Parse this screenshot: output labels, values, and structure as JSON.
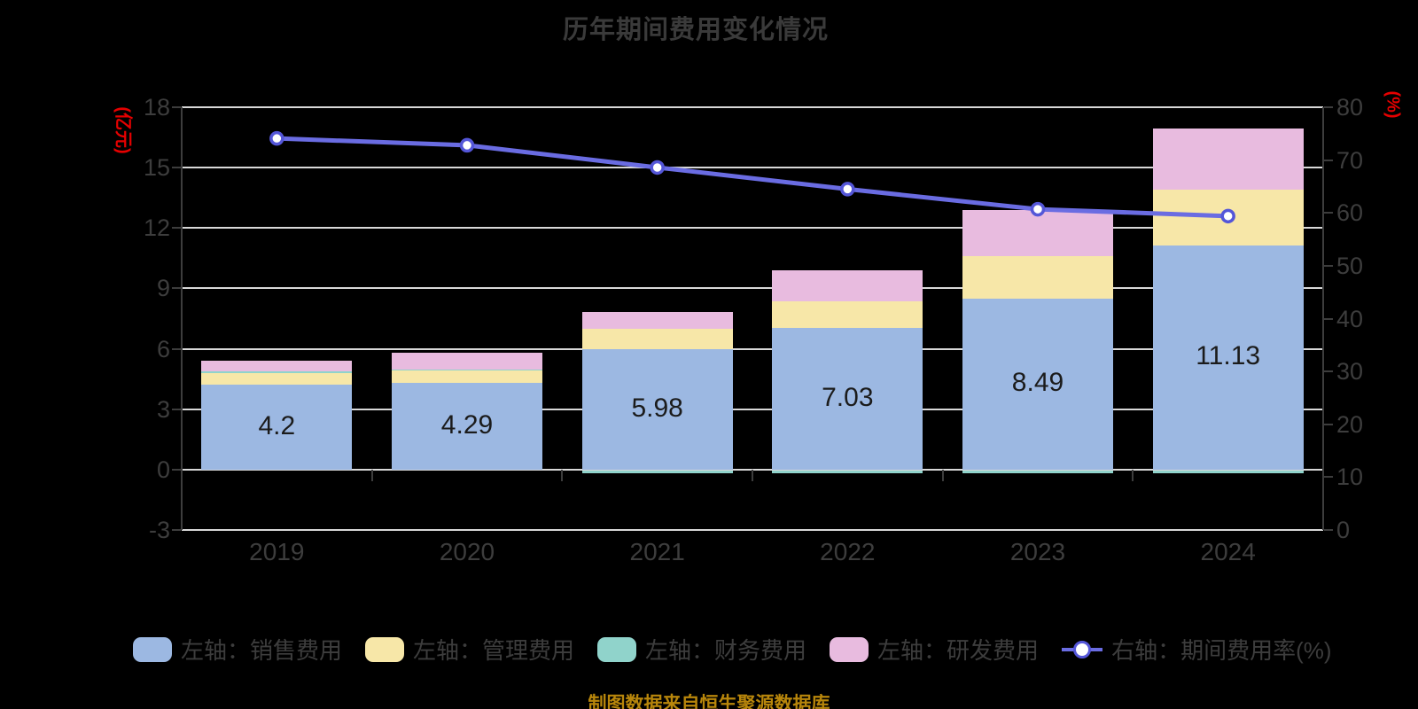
{
  "source_note": "制图数据来自恒生聚源数据库",
  "colors": {
    "background": "#000000",
    "title_text": "#3a3a3a",
    "axis_text": "#3d3d3d",
    "gridline": "#d8d8d8",
    "axis_unit_red": "#e60000",
    "source_note": "#b8860b",
    "bar_value_text": "#1b1b1b"
  },
  "chart_data": {
    "type": "bar",
    "subtype": "stacked-bar-with-line",
    "title": "历年期间费用变化情况",
    "categories": [
      "2019",
      "2020",
      "2021",
      "2022",
      "2023",
      "2024"
    ],
    "series": [
      {
        "key": "sales",
        "name": "左轴：销售费用",
        "axis": "left",
        "type": "bar",
        "color": "#9cb8e2",
        "values": [
          4.2,
          4.29,
          5.98,
          7.03,
          8.49,
          11.13
        ]
      },
      {
        "key": "management",
        "name": "左轴：管理费用",
        "axis": "left",
        "type": "bar",
        "color": "#f7e7a8",
        "values": [
          0.58,
          0.65,
          1.0,
          1.31,
          2.1,
          2.76
        ]
      },
      {
        "key": "financial",
        "name": "左轴：财务费用",
        "axis": "left",
        "type": "bar",
        "color": "#90d3cb",
        "values": [
          0.12,
          0.02,
          -0.05,
          -0.05,
          -0.05,
          -0.05
        ]
      },
      {
        "key": "rd",
        "name": "左轴：研发费用",
        "axis": "left",
        "type": "bar",
        "color": "#e8bbdf",
        "values": [
          0.52,
          0.84,
          0.84,
          1.58,
          2.31,
          3.05
        ]
      },
      {
        "key": "expense-ratio",
        "name": "右轴：期间费用率(%)",
        "axis": "right",
        "type": "line",
        "color": "#6a6ce2",
        "marker_fill": "#ffffff",
        "marker_stroke": "#5456d8",
        "values": [
          74.1,
          72.8,
          68.6,
          64.5,
          60.7,
          59.4
        ]
      }
    ],
    "bar_labels": [
      "4.2",
      "4.29",
      "5.98",
      "7.03",
      "8.49",
      "11.13"
    ],
    "left_axis": {
      "label": "(亿元)",
      "min": -3,
      "max": 18,
      "ticks": [
        18,
        15,
        12,
        9,
        6,
        3,
        0,
        -3
      ]
    },
    "right_axis": {
      "label": "(%)",
      "min": 0,
      "max": 80,
      "ticks": [
        80,
        70,
        60,
        50,
        40,
        30,
        20,
        10,
        0
      ]
    },
    "grid": true,
    "legend_position": "bottom"
  }
}
